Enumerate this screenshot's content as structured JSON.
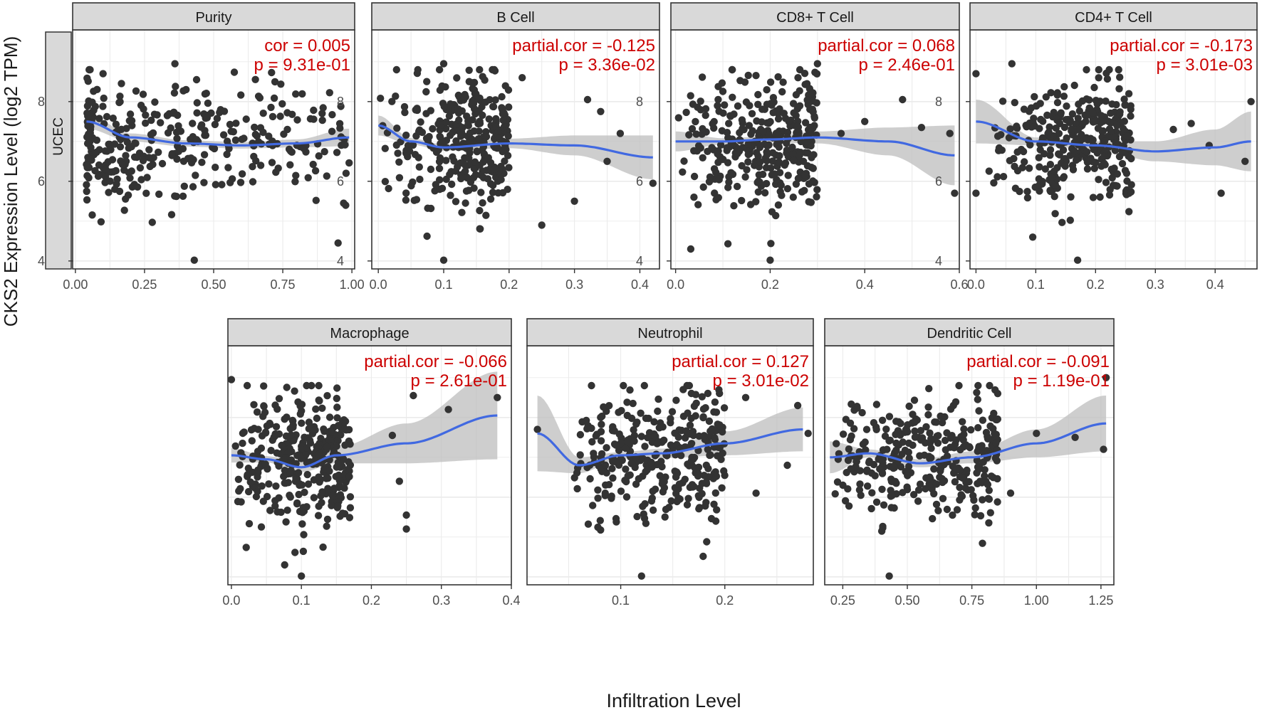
{
  "figure": {
    "ylabel": "CKS2 Expression Level (log2 TPM)",
    "xlabel": "Infiltration Level",
    "row_strip": "UCEC"
  },
  "colors": {
    "points": "#333333",
    "smooth_line": "#4169E1",
    "confidence_band": "#BDBDBD",
    "annotation": "#CC0000",
    "strip_fill": "#D9D9D9",
    "grid": "#EBEBEB"
  },
  "chart_data": [
    {
      "type": "scatter",
      "panel": "Purity",
      "title": "Purity",
      "annotation": [
        "cor = 0.005",
        "p = 9.31e-01"
      ],
      "xlim": [
        -0.01,
        1.01
      ],
      "ylim": [
        3.8,
        9.8
      ],
      "xticks": [
        0.0,
        0.25,
        0.5,
        0.75,
        1.0
      ],
      "xtick_labels": [
        "0.00",
        "0.25",
        "0.50",
        "0.75",
        "1.00"
      ],
      "yticks": [
        4,
        6,
        8
      ],
      "ytick_labels": [
        "4",
        "6",
        "8"
      ],
      "smooth": {
        "x": [
          0.04,
          0.2,
          0.4,
          0.6,
          0.8,
          0.99
        ],
        "y": [
          7.5,
          7.1,
          6.95,
          6.9,
          6.95,
          7.1
        ],
        "ci": [
          0.18,
          0.1,
          0.08,
          0.08,
          0.1,
          0.22
        ]
      },
      "points": {
        "seed": 11,
        "n": 330,
        "xrange": [
          0.04,
          0.99
        ],
        "xshape": 1.6,
        "ymean": 7.0,
        "ysd": 0.8,
        "extra": [
          [
            0.36,
            8.95
          ],
          [
            0.43,
            4.02
          ],
          [
            0.12,
            5.72
          ],
          [
            0.97,
            5.45
          ],
          [
            0.95,
            4.45
          ],
          [
            0.05,
            7.7
          ],
          [
            0.1,
            8.7
          ]
        ]
      }
    },
    {
      "type": "scatter",
      "panel": "B Cell",
      "title": "B Cell",
      "annotation": [
        "partial.cor = -0.125",
        "p = 3.36e-02"
      ],
      "xlim": [
        -0.01,
        0.43
      ],
      "ylim": [
        3.8,
        9.8
      ],
      "xticks": [
        0.0,
        0.1,
        0.2,
        0.3,
        0.4
      ],
      "xtick_labels": [
        "0.0",
        "0.1",
        "0.2",
        "0.3",
        "0.4"
      ],
      "yticks": [
        4,
        6,
        8
      ],
      "ytick_labels": [
        "4",
        "6",
        "8"
      ],
      "smooth": {
        "x": [
          0.0,
          0.05,
          0.1,
          0.2,
          0.3,
          0.42
        ],
        "y": [
          7.4,
          7.0,
          6.85,
          6.95,
          6.9,
          6.6
        ],
        "ci": [
          0.25,
          0.08,
          0.08,
          0.12,
          0.25,
          0.55
        ]
      },
      "points": {
        "seed": 22,
        "n": 330,
        "xrange": [
          0.0,
          0.2
        ],
        "xshape": 0.5,
        "ymean": 7.0,
        "ysd": 0.8,
        "extra": [
          [
            0.1,
            8.95
          ],
          [
            0.1,
            4.02
          ],
          [
            0.32,
            8.05
          ],
          [
            0.42,
            5.95
          ],
          [
            0.37,
            7.2
          ],
          [
            0.3,
            5.5
          ],
          [
            0.25,
            4.9
          ],
          [
            0.35,
            6.5
          ],
          [
            0.22,
            8.6
          ],
          [
            0.34,
            7.75
          ]
        ]
      }
    },
    {
      "type": "scatter",
      "panel": "CD8+ T Cell",
      "title": "CD8+ T Cell",
      "annotation": [
        "partial.cor = 0.068",
        "p = 2.46e-01"
      ],
      "xlim": [
        -0.01,
        0.6
      ],
      "ylim": [
        3.8,
        9.8
      ],
      "xticks": [
        0.0,
        0.2,
        0.4,
        0.6
      ],
      "xtick_labels": [
        "0.0",
        "0.2",
        "0.4",
        "0.6"
      ],
      "yticks": [
        4,
        6,
        8
      ],
      "ytick_labels": [
        "4",
        "6",
        "8"
      ],
      "smooth": {
        "x": [
          0.0,
          0.1,
          0.2,
          0.3,
          0.45,
          0.59
        ],
        "y": [
          7.0,
          7.0,
          7.05,
          7.1,
          7.0,
          6.65
        ],
        "ci": [
          0.25,
          0.08,
          0.08,
          0.15,
          0.35,
          0.75
        ]
      },
      "points": {
        "seed": 33,
        "n": 330,
        "xrange": [
          0.0,
          0.3
        ],
        "xshape": 0.6,
        "ymean": 7.05,
        "ysd": 0.85,
        "extra": [
          [
            0.3,
            8.95
          ],
          [
            0.2,
            4.02
          ],
          [
            0.48,
            8.05
          ],
          [
            0.59,
            5.7
          ],
          [
            0.52,
            7.35
          ],
          [
            0.58,
            7.2
          ],
          [
            0.4,
            7.5
          ],
          [
            0.35,
            7.2
          ]
        ]
      }
    },
    {
      "type": "scatter",
      "panel": "CD4+ T Cell",
      "title": "CD4+ T Cell",
      "annotation": [
        "partial.cor = -0.173",
        "p = 3.01e-03"
      ],
      "xlim": [
        -0.01,
        0.47
      ],
      "ylim": [
        3.8,
        9.8
      ],
      "xticks": [
        0.0,
        0.1,
        0.2,
        0.3,
        0.4
      ],
      "xtick_labels": [
        "0.0",
        "0.1",
        "0.2",
        "0.3",
        "0.4"
      ],
      "yticks": [
        4,
        6,
        8
      ],
      "ytick_labels": [
        "4",
        "6",
        "8"
      ],
      "smooth": {
        "x": [
          0.0,
          0.1,
          0.2,
          0.3,
          0.4,
          0.46
        ],
        "y": [
          7.5,
          7.0,
          6.9,
          6.75,
          6.85,
          7.0
        ],
        "ci": [
          0.55,
          0.1,
          0.1,
          0.25,
          0.45,
          0.75
        ]
      },
      "points": {
        "seed": 44,
        "n": 330,
        "xrange": [
          0.02,
          0.26
        ],
        "xshape": 0.6,
        "ymean": 7.0,
        "ysd": 0.8,
        "extra": [
          [
            0.0,
            8.7
          ],
          [
            0.06,
            8.95
          ],
          [
            0.46,
            8.0
          ],
          [
            0.41,
            5.7
          ],
          [
            0.0,
            5.7
          ],
          [
            0.45,
            6.5
          ],
          [
            0.33,
            7.3
          ],
          [
            0.36,
            7.45
          ],
          [
            0.39,
            6.9
          ],
          [
            0.17,
            4.02
          ]
        ]
      }
    },
    {
      "type": "scatter",
      "panel": "Macrophage",
      "title": "Macrophage",
      "annotation": [
        "partial.cor = -0.066",
        "p = 2.61e-01"
      ],
      "xlim": [
        -0.005,
        0.4
      ],
      "ylim": [
        3.8,
        9.8
      ],
      "xticks": [
        0.0,
        0.1,
        0.2,
        0.3,
        0.4
      ],
      "xtick_labels": [
        "0.0",
        "0.1",
        "0.2",
        "0.3",
        "0.4"
      ],
      "yticks": [],
      "ytick_labels": [],
      "smooth": {
        "x": [
          0.0,
          0.05,
          0.1,
          0.15,
          0.25,
          0.38
        ],
        "y": [
          7.05,
          6.95,
          6.75,
          7.05,
          7.35,
          8.05
        ],
        "ci": [
          0.18,
          0.08,
          0.12,
          0.2,
          0.5,
          1.1
        ]
      },
      "points": {
        "seed": 55,
        "n": 330,
        "xrange": [
          0.0,
          0.17
        ],
        "xshape": 0.7,
        "ymean": 7.0,
        "ysd": 0.85,
        "extra": [
          [
            0.0,
            8.95
          ],
          [
            0.1,
            4.02
          ],
          [
            0.26,
            8.55
          ],
          [
            0.38,
            8.5
          ],
          [
            0.25,
            5.55
          ],
          [
            0.25,
            5.2
          ],
          [
            0.24,
            6.4
          ],
          [
            0.23,
            7.55
          ],
          [
            0.31,
            8.2
          ]
        ]
      }
    },
    {
      "type": "scatter",
      "panel": "Neutrophil",
      "title": "Neutrophil",
      "annotation": [
        "partial.cor = 0.127",
        "p = 3.01e-02"
      ],
      "xlim": [
        0.01,
        0.285
      ],
      "ylim": [
        3.8,
        9.8
      ],
      "xticks": [
        0.1,
        0.2
      ],
      "xtick_labels": [
        "0.1",
        "0.2"
      ],
      "yticks": [],
      "ytick_labels": [],
      "smooth": {
        "x": [
          0.02,
          0.06,
          0.1,
          0.14,
          0.2,
          0.275
        ],
        "y": [
          7.6,
          6.8,
          7.05,
          7.1,
          7.35,
          7.7
        ],
        "ci": [
          0.95,
          0.2,
          0.08,
          0.12,
          0.3,
          0.55
        ]
      },
      "points": {
        "seed": 66,
        "n": 330,
        "xrange": [
          0.055,
          0.2
        ],
        "xshape": 0.7,
        "ymean": 7.05,
        "ysd": 0.8,
        "extra": [
          [
            0.02,
            7.7
          ],
          [
            0.22,
            8.5
          ],
          [
            0.27,
            8.3
          ],
          [
            0.23,
            6.1
          ],
          [
            0.26,
            6.8
          ],
          [
            0.12,
            4.02
          ],
          [
            0.28,
            7.6
          ],
          [
            0.16,
            8.7
          ]
        ]
      }
    },
    {
      "type": "scatter",
      "panel": "Dendritic Cell",
      "title": "Dendritic Cell",
      "annotation": [
        "partial.cor = -0.091",
        "p = 1.19e-01"
      ],
      "xlim": [
        0.18,
        1.3
      ],
      "ylim": [
        3.8,
        9.8
      ],
      "xticks": [
        0.25,
        0.5,
        0.75,
        1.0,
        1.25
      ],
      "xtick_labels": [
        "0.25",
        "0.50",
        "0.75",
        "1.00",
        "1.25"
      ],
      "yticks": [],
      "ytick_labels": [],
      "smooth": {
        "x": [
          0.2,
          0.35,
          0.55,
          0.75,
          1.0,
          1.27
        ],
        "y": [
          7.0,
          7.1,
          6.85,
          7.0,
          7.35,
          7.85
        ],
        "ci": [
          0.4,
          0.1,
          0.1,
          0.15,
          0.35,
          0.7
        ]
      },
      "points": {
        "seed": 77,
        "n": 330,
        "xrange": [
          0.22,
          0.85
        ],
        "xshape": 0.8,
        "ymean": 7.0,
        "ysd": 0.8,
        "extra": [
          [
            0.43,
            4.02
          ],
          [
            1.27,
            9.0
          ],
          [
            1.26,
            7.2
          ],
          [
            1.0,
            7.6
          ],
          [
            0.9,
            6.1
          ],
          [
            1.15,
            7.5
          ],
          [
            0.85,
            8.6
          ],
          [
            0.7,
            8.8
          ]
        ]
      }
    }
  ]
}
